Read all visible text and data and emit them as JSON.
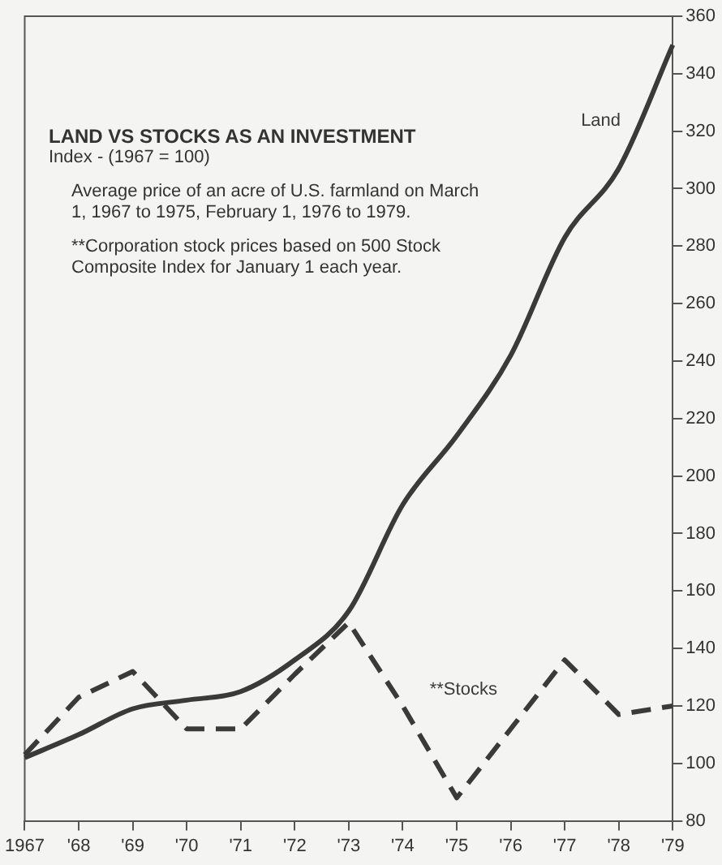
{
  "chart_data": {
    "type": "line",
    "title": "LAND VS STOCKS AS AN INVESTMENT",
    "subtitle": "Index - (1967 = 100)",
    "annotations": [
      "Average price of an acre of U.S. farmland on March 1, 1967 to 1975, February 1, 1976 to 1979.",
      "**Corporation stock prices based on 500 Stock Composite Index for January 1 each year."
    ],
    "categories": [
      "1967",
      "'68",
      "'69",
      "'70",
      "'71",
      "'72",
      "'73",
      "'74",
      "'75",
      "'76",
      "'77",
      "'78",
      "'79"
    ],
    "series": [
      {
        "name": "Land",
        "color": "#3a3a3a",
        "line_style": "solid",
        "values": [
          102,
          110,
          119,
          122,
          125,
          136,
          153,
          190,
          214,
          242,
          283,
          307,
          350
        ]
      },
      {
        "name": "**Stocks",
        "color": "#3a3a3a",
        "line_style": "dashed",
        "values": [
          103,
          123,
          132,
          112,
          112,
          131,
          149,
          120,
          88,
          112,
          136,
          117,
          120
        ]
      }
    ],
    "ylim": [
      80,
      360
    ],
    "yticks": [
      80,
      100,
      120,
      140,
      160,
      180,
      200,
      220,
      240,
      260,
      280,
      300,
      320,
      340,
      360
    ],
    "grid": false,
    "legend": false,
    "marker": "none"
  }
}
